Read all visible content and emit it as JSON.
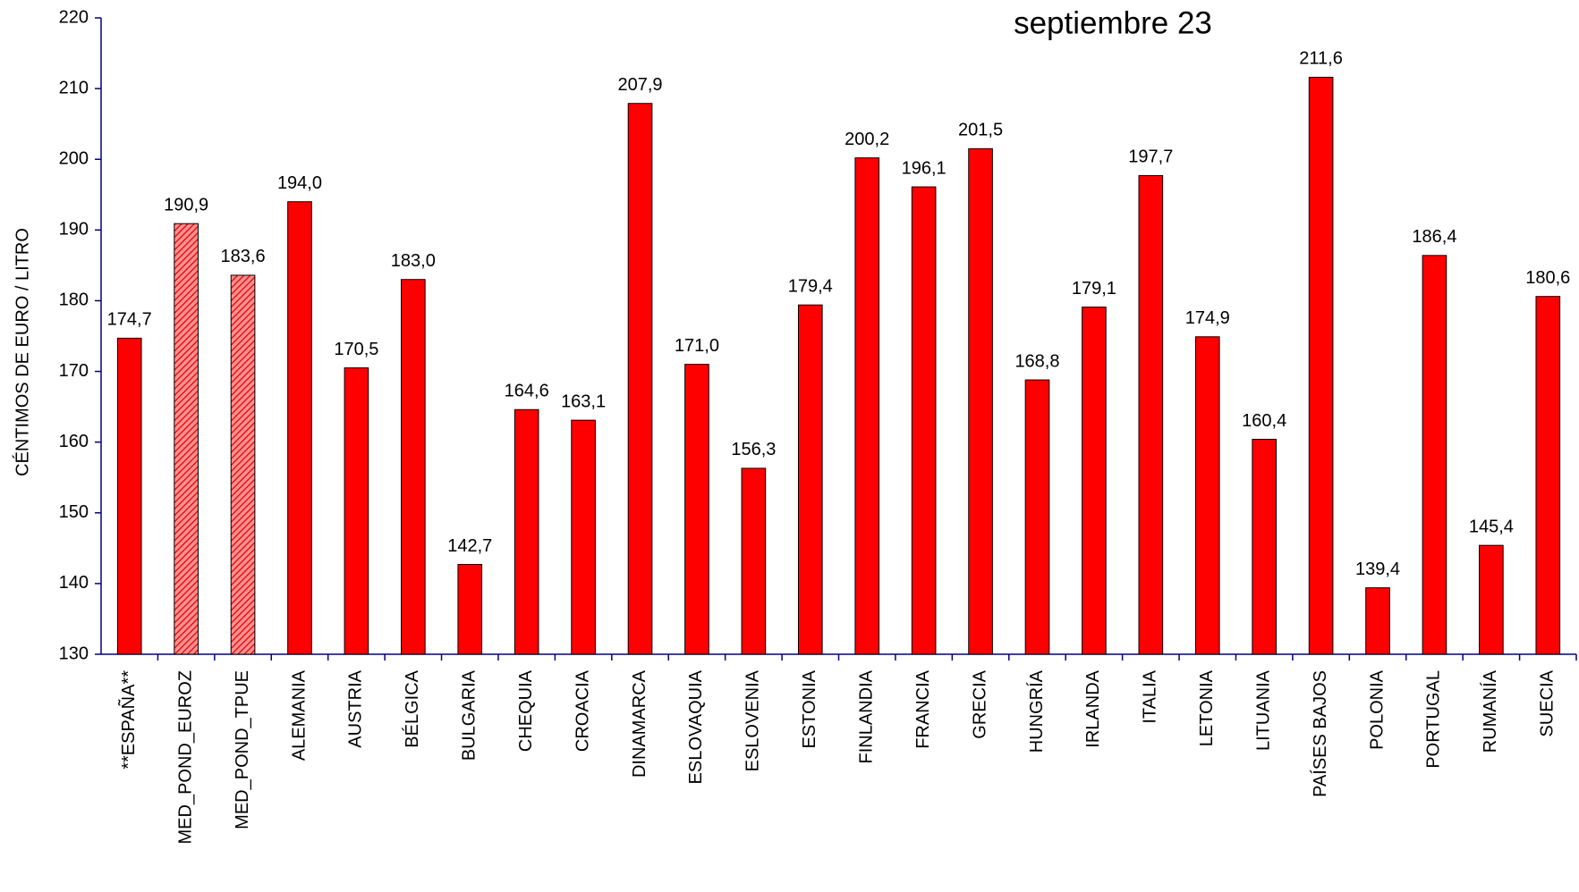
{
  "chart_data": {
    "type": "bar",
    "title": "septiembre 23",
    "y_label": "CÉNTIMOS DE EURO / LITRO",
    "categories": [
      "**ESPAÑA**",
      "MED_POND_EUROZ",
      "MED_POND_TPUE",
      "ALEMANIA",
      "AUSTRIA",
      "BÉLGICA",
      "BULGARIA",
      "CHEQUIA",
      "CROACIA",
      "DINAMARCA",
      "ESLOVAQUIA",
      "ESLOVENIA",
      "ESTONIA",
      "FINLANDIA",
      "FRANCIA",
      "GRECIA",
      "HUNGRÍA",
      "IRLANDA",
      "ITALIA",
      "LETONIA",
      "LITUANIA",
      "PAÍSES BAJOS",
      "POLONIA",
      "PORTUGAL",
      "RUMANÍA",
      "SUECIA"
    ],
    "values": [
      174.7,
      190.9,
      183.6,
      194.0,
      170.5,
      183.0,
      142.7,
      164.6,
      163.1,
      207.9,
      171.0,
      156.3,
      179.4,
      200.2,
      196.1,
      201.5,
      168.8,
      179.1,
      197.7,
      174.9,
      160.4,
      211.6,
      139.4,
      186.4,
      145.4,
      180.6
    ],
    "value_labels": [
      "174,7",
      "190,9",
      "183,6",
      "194,0",
      "170,5",
      "183,0",
      "142,7",
      "164,6",
      "163,1",
      "207,9",
      "171,0",
      "156,3",
      "179,4",
      "200,2",
      "196,1",
      "201,5",
      "168,8",
      "179,1",
      "197,7",
      "174,9",
      "160,4",
      "211,6",
      "139,4",
      "186,4",
      "145,4",
      "180,6"
    ],
    "patterns": [
      "solid",
      "hatched",
      "hatched",
      "solid",
      "solid",
      "solid",
      "solid",
      "solid",
      "solid",
      "solid",
      "solid",
      "solid",
      "solid",
      "solid",
      "solid",
      "solid",
      "solid",
      "solid",
      "solid",
      "solid",
      "solid",
      "solid",
      "solid",
      "solid",
      "solid",
      "solid"
    ],
    "color": "#ff0000",
    "axis_color": "#000080",
    "ylim": [
      130,
      220
    ],
    "yticks": [
      130,
      140,
      150,
      160,
      170,
      180,
      190,
      200,
      210,
      220
    ],
    "grid": false
  }
}
